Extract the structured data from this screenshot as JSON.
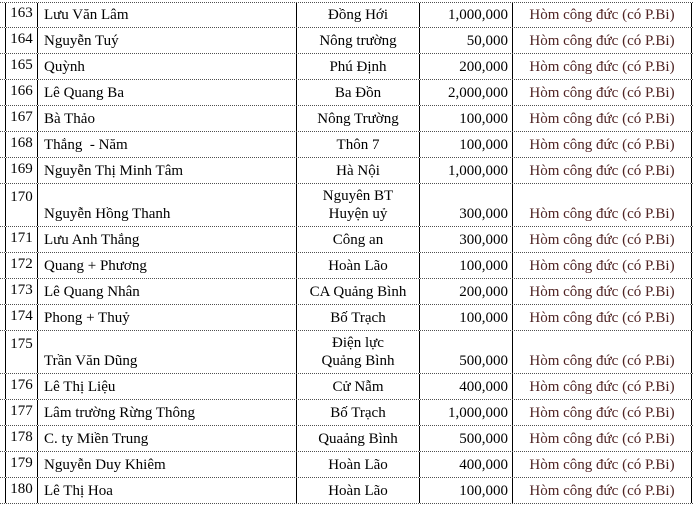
{
  "table": {
    "rows": [
      {
        "no": "163",
        "name": "Lưu Văn Lâm",
        "location": "Đồng Hới",
        "amount": "1,000,000",
        "note": "Hòm công đức (có P.Bi)",
        "tall": false
      },
      {
        "no": "164",
        "name": "Nguyễn Tuý",
        "location": "Nông trường",
        "amount": "50,000",
        "note": "Hòm công đức (có P.Bi)",
        "tall": false
      },
      {
        "no": "165",
        "name": "Quỳnh",
        "location": "Phú Định",
        "amount": "200,000",
        "note": "Hòm công đức (có P.Bi)",
        "tall": false
      },
      {
        "no": "166",
        "name": "Lê Quang Ba",
        "location": "Ba Đồn",
        "amount": "2,000,000",
        "note": "Hòm công đức (có P.Bi)",
        "tall": false
      },
      {
        "no": "167",
        "name": "Bà Thảo",
        "location": "Nông Trường",
        "amount": "100,000",
        "note": "Hòm công đức (có P.Bi)",
        "tall": false
      },
      {
        "no": "168",
        "name": "Thắng  - Năm",
        "location": "Thôn 7",
        "amount": "100,000",
        "note": "Hòm công đức (có P.Bi)",
        "tall": false
      },
      {
        "no": "169",
        "name": "Nguyễn Thị Minh Tâm",
        "location": "Hà Nội",
        "amount": "1,000,000",
        "note": "Hòm công đức (có P.Bi)",
        "tall": false
      },
      {
        "no": "170",
        "name": "Nguyễn Hồng Thanh",
        "location": "Nguyên BT\nHuyện uỷ",
        "amount": "300,000",
        "note": "Hòm công đức (có P.Bi)",
        "tall": true
      },
      {
        "no": "171",
        "name": "Lưu Anh Thắng",
        "location": "Công an",
        "amount": "300,000",
        "note": "Hòm công đức (có P.Bi)",
        "tall": false
      },
      {
        "no": "172",
        "name": "Quang + Phương",
        "location": "Hoàn Lão",
        "amount": "100,000",
        "note": "Hòm công đức (có P.Bi)",
        "tall": false
      },
      {
        "no": "173",
        "name": "Lê Quang Nhân",
        "location": "CA Quảng Bình",
        "amount": "200,000",
        "note": "Hòm công đức (có P.Bi)",
        "tall": false
      },
      {
        "no": "174",
        "name": "Phong + Thuỷ",
        "location": "Bố Trạch",
        "amount": "100,000",
        "note": "Hòm công đức (có P.Bi)",
        "tall": false
      },
      {
        "no": "175",
        "name": "Trần Văn Dũng",
        "location": "Điện lực\nQuảng Bình",
        "amount": "500,000",
        "note": "Hòm công đức (có P.Bi)",
        "tall": true
      },
      {
        "no": "176",
        "name": "Lê Thị Liệu",
        "location": "Cử Nẫm",
        "amount": "400,000",
        "note": "Hòm công đức (có P.Bi)",
        "tall": false
      },
      {
        "no": "177",
        "name": "Lâm trường Rừng Thông",
        "location": "Bố Trạch",
        "amount": "1,000,000",
        "note": "Hòm công đức (có P.Bi)",
        "tall": false
      },
      {
        "no": "178",
        "name": "C. ty Miền Trung",
        "location": "Quaảng Bình",
        "amount": "500,000",
        "note": "Hòm công đức (có P.Bi)",
        "tall": false
      },
      {
        "no": "179",
        "name": "Nguyễn Duy Khiêm",
        "location": "Hoàn Lão",
        "amount": "400,000",
        "note": "Hòm công đức (có P.Bi)",
        "tall": false
      },
      {
        "no": "180",
        "name": "Lê Thị Hoa",
        "location": "Hoàn Lão",
        "amount": "100,000",
        "note": "Hòm công đức (có P.Bi)",
        "tall": false
      }
    ]
  },
  "colors": {
    "solid_border": "#000000",
    "dotted_gridline": "#4f4f4f",
    "text": "#000000",
    "note_text": "#4f2323",
    "background": "#ffffff"
  }
}
